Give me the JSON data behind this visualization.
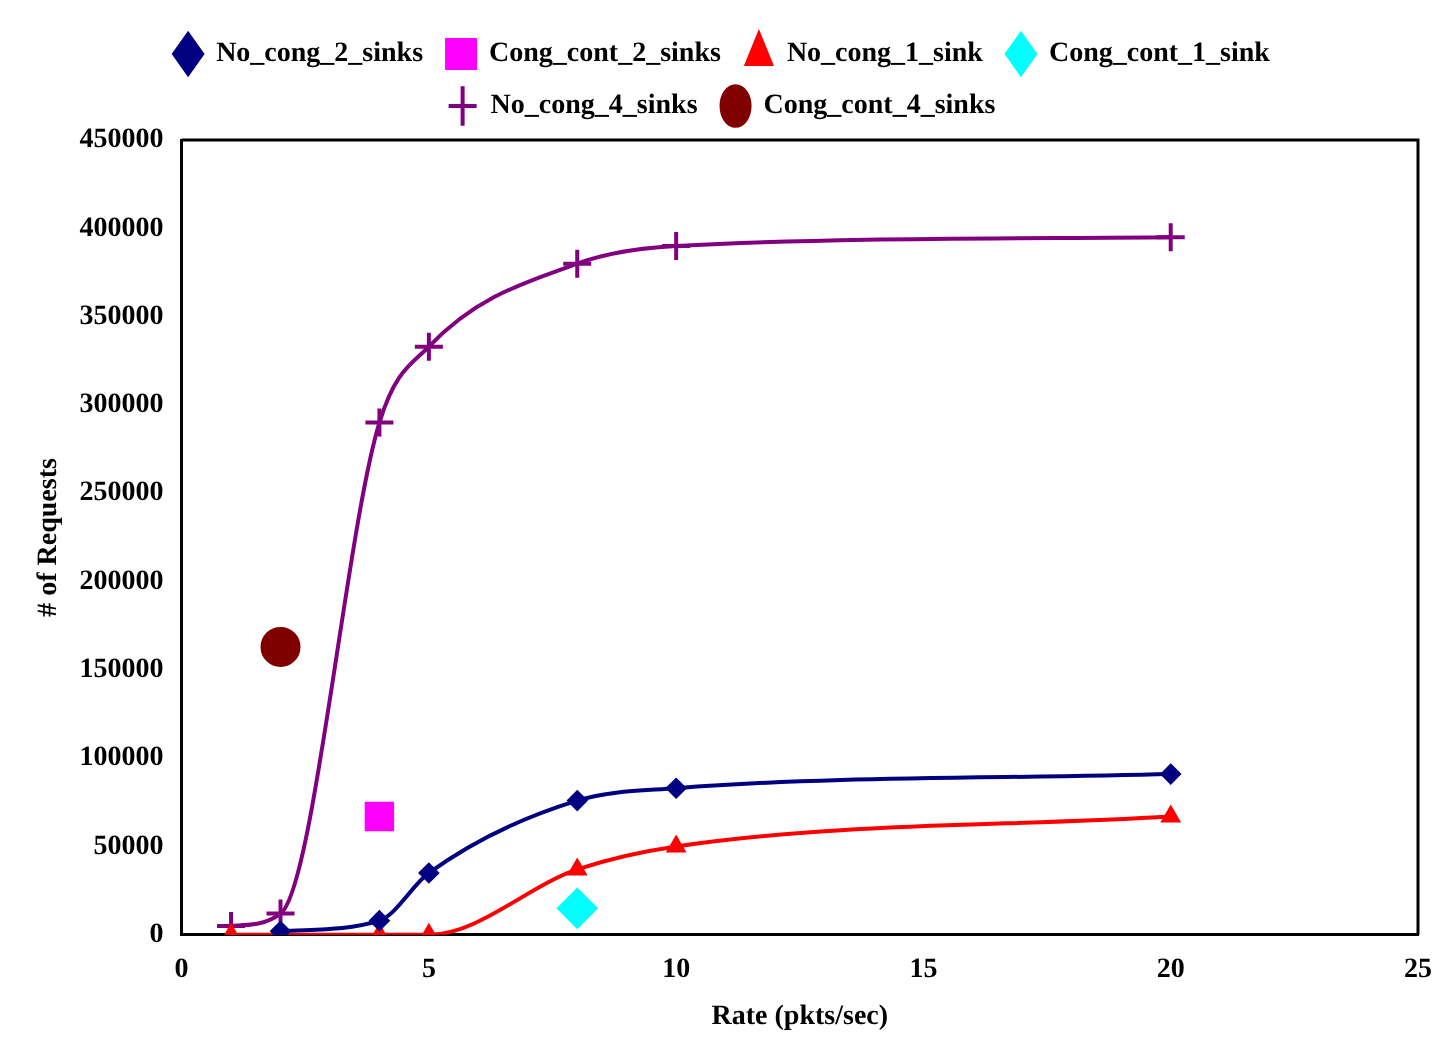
{
  "chart_data": {
    "type": "line",
    "xlabel": "Rate (pkts/sec)",
    "ylabel": "# of Requests",
    "xlim": [
      0,
      25
    ],
    "xticks": [
      0,
      5,
      10,
      15,
      20,
      25
    ],
    "ylim": [
      0,
      450000
    ],
    "yticks": [
      0,
      50000,
      100000,
      150000,
      200000,
      250000,
      300000,
      350000,
      400000,
      450000
    ],
    "grid": false,
    "legend": "top",
    "series": [
      {
        "name": "No_cong_2_sinks",
        "type": "line",
        "marker": "diamond",
        "color": "#000080",
        "x": [
          2,
          4,
          5,
          8,
          10,
          20
        ],
        "values": [
          2000,
          8000,
          35000,
          76000,
          83000,
          91000
        ]
      },
      {
        "name": "Cong_cont_2_sinks",
        "type": "scatter",
        "marker": "square",
        "color": "#ff00ff",
        "x": [
          4
        ],
        "values": [
          67000
        ]
      },
      {
        "name": "No_cong_1_sink",
        "type": "line",
        "marker": "triangle",
        "color": "#ff0000",
        "x": [
          1,
          2,
          4,
          5,
          8,
          10,
          20
        ],
        "values": [
          0,
          0,
          0,
          0,
          37000,
          50000,
          67000
        ]
      },
      {
        "name": "Cong_cont_1_sink",
        "type": "scatter",
        "marker": "diamond",
        "color": "#00ffff",
        "x": [
          8
        ],
        "values": [
          15000
        ]
      },
      {
        "name": "No_cong_4_sinks",
        "type": "line",
        "marker": "cross",
        "color": "#800080",
        "x": [
          1,
          2,
          4,
          5,
          8,
          10,
          20
        ],
        "values": [
          5000,
          12000,
          290000,
          333000,
          380000,
          390000,
          395000
        ]
      },
      {
        "name": "Cong_cont_4_sinks",
        "type": "scatter",
        "marker": "circle",
        "color": "#800000",
        "x": [
          2
        ],
        "values": [
          163000
        ]
      }
    ]
  }
}
